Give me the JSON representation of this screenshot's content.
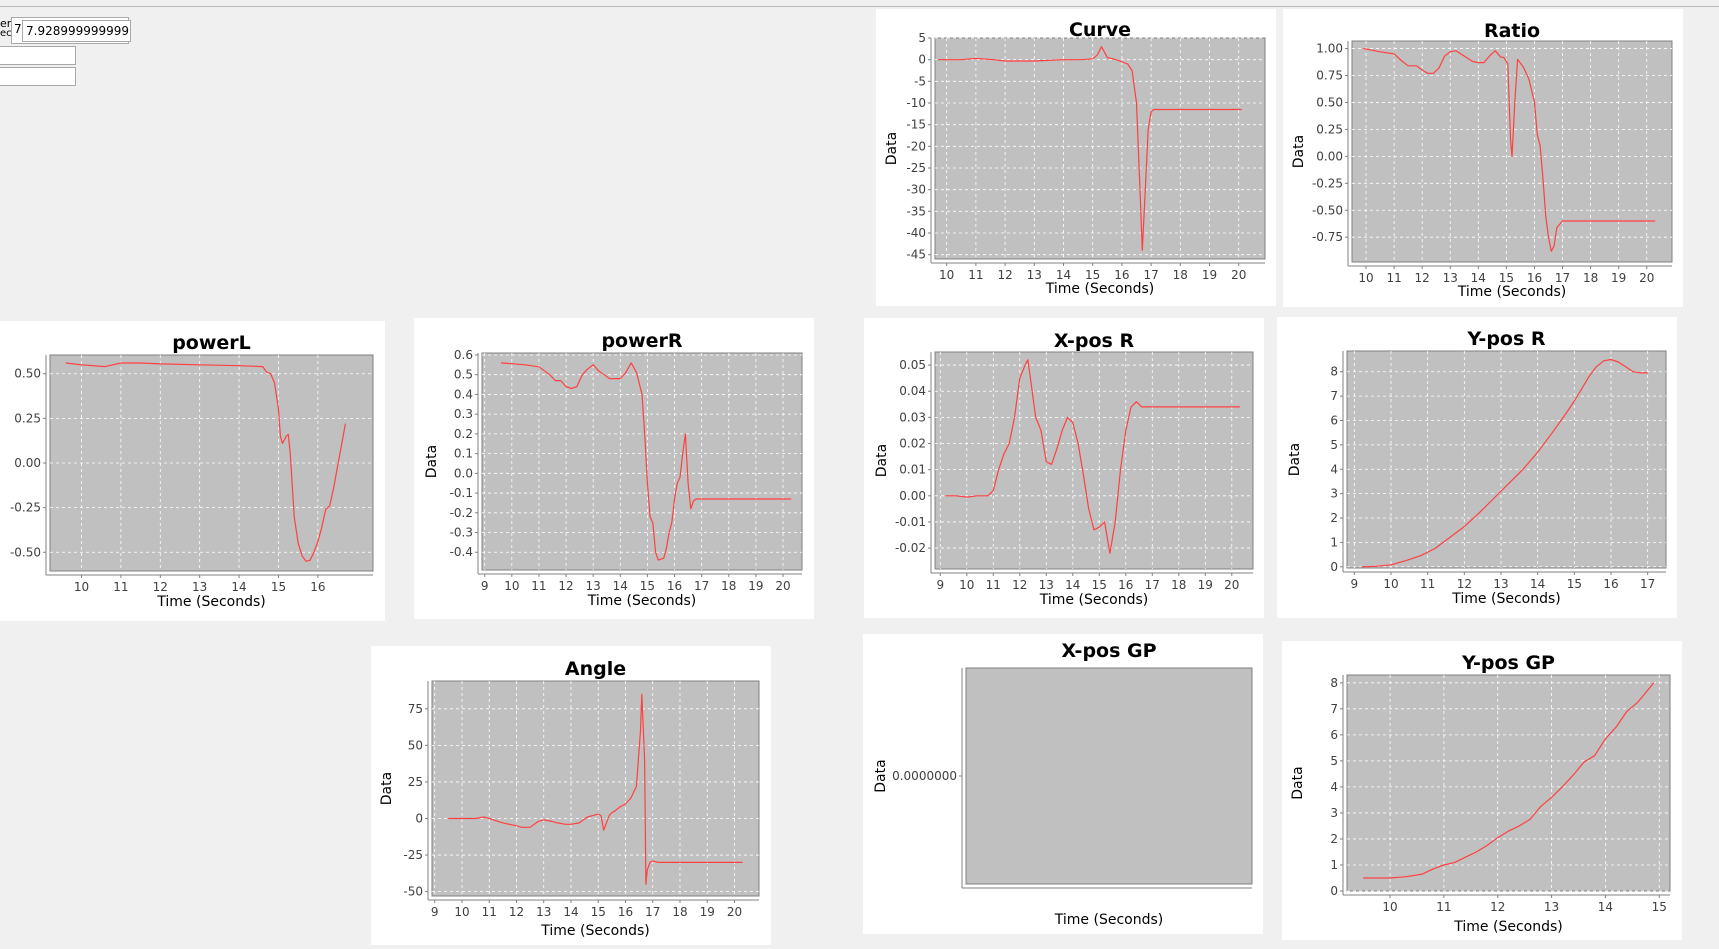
{
  "controls": {
    "label_top": "er",
    "label_bottom": "ecto",
    "field_small": "7.",
    "field_value": "7.92899999999999",
    "field_2": "",
    "field_3": ""
  },
  "series_color": "#ff4040",
  "plot_bg": "#c0c0c0",
  "chart_data": [
    {
      "id": "curve",
      "type": "line",
      "title": "Curve",
      "xlabel": "Time (Seconds)",
      "ylabel": "Data",
      "xlim": [
        9.6,
        20.9
      ],
      "ylim": [
        -46,
        5
      ],
      "xticks": [
        10,
        11,
        12,
        13,
        14,
        15,
        16,
        17,
        18,
        19,
        20
      ],
      "yticks": [
        5,
        0,
        -5,
        -10,
        -15,
        -20,
        -25,
        -30,
        -35,
        -40,
        -45
      ],
      "ydec": 0,
      "grid": true,
      "x": [
        9.7,
        10.5,
        11.0,
        11.6,
        12.0,
        13.0,
        14.0,
        14.6,
        15.0,
        15.15,
        15.3,
        15.5,
        15.8,
        16.0,
        16.2,
        16.35,
        16.5,
        16.62,
        16.7,
        16.8,
        16.9,
        17.0,
        17.1,
        17.5,
        18.0,
        19.0,
        20.1
      ],
      "y": [
        0,
        0,
        0.3,
        0,
        -0.3,
        -0.3,
        0,
        0,
        0.2,
        1.0,
        3.0,
        0.5,
        0,
        -0.5,
        -1.0,
        -2.5,
        -10,
        -30,
        -44,
        -30,
        -16,
        -12,
        -11.5,
        -11.5,
        -11.5,
        -11.5,
        -11.5
      ]
    },
    {
      "id": "ratio",
      "type": "line",
      "title": "Ratio",
      "xlabel": "Time (Seconds)",
      "ylabel": "Data",
      "xlim": [
        9.5,
        20.9
      ],
      "ylim": [
        -0.98,
        1.07
      ],
      "xticks": [
        10,
        11,
        12,
        13,
        14,
        15,
        16,
        17,
        18,
        19,
        20
      ],
      "yticks": [
        1.0,
        0.75,
        0.5,
        0.25,
        0.0,
        -0.25,
        -0.5,
        -0.75
      ],
      "ydec": 2,
      "grid": true,
      "x": [
        9.9,
        10.5,
        11.0,
        11.3,
        11.5,
        11.8,
        12.0,
        12.2,
        12.4,
        12.6,
        12.8,
        13.0,
        13.2,
        13.5,
        13.8,
        14.0,
        14.2,
        14.4,
        14.6,
        14.8,
        14.9,
        15.0,
        15.05,
        15.1,
        15.15,
        15.2,
        15.3,
        15.4,
        15.6,
        15.8,
        16.0,
        16.1,
        16.2,
        16.3,
        16.4,
        16.5,
        16.6,
        16.7,
        16.8,
        17.0,
        18.0,
        19.0,
        20.3
      ],
      "y": [
        1.0,
        0.97,
        0.95,
        0.88,
        0.84,
        0.84,
        0.8,
        0.77,
        0.77,
        0.82,
        0.93,
        0.97,
        0.98,
        0.93,
        0.88,
        0.87,
        0.87,
        0.93,
        0.98,
        0.92,
        0.92,
        0.88,
        0.86,
        0.5,
        0.15,
        0.0,
        0.5,
        0.9,
        0.83,
        0.72,
        0.5,
        0.2,
        0.1,
        -0.2,
        -0.55,
        -0.75,
        -0.88,
        -0.83,
        -0.66,
        -0.6,
        -0.6,
        -0.6,
        -0.6
      ]
    },
    {
      "id": "powerL",
      "type": "line",
      "title": "powerL",
      "xlabel": "Time (Seconds)",
      "ylabel": "Data",
      "xlim": [
        9.2,
        17.4
      ],
      "ylim": [
        -0.605,
        0.605
      ],
      "xticks": [
        10,
        11,
        12,
        13,
        14,
        15,
        16
      ],
      "yticks": [
        0.5,
        0.25,
        0.0,
        -0.25,
        -0.5
      ],
      "ydec": 2,
      "grid": true,
      "x": [
        9.6,
        10.0,
        10.6,
        11.0,
        11.5,
        12.0,
        13.0,
        14.0,
        14.6,
        14.7,
        14.8,
        14.9,
        15.0,
        15.05,
        15.1,
        15.15,
        15.2,
        15.25,
        15.3,
        15.4,
        15.5,
        15.6,
        15.7,
        15.8,
        15.9,
        16.0,
        16.1,
        16.2,
        16.3,
        16.4,
        16.5,
        16.6,
        16.7
      ],
      "y": [
        0.56,
        0.55,
        0.54,
        0.56,
        0.56,
        0.555,
        0.55,
        0.545,
        0.54,
        0.51,
        0.5,
        0.45,
        0.3,
        0.15,
        0.11,
        0.13,
        0.15,
        0.16,
        0.05,
        -0.3,
        -0.45,
        -0.52,
        -0.55,
        -0.545,
        -0.5,
        -0.44,
        -0.36,
        -0.26,
        -0.24,
        -0.14,
        -0.02,
        0.1,
        0.22
      ]
    },
    {
      "id": "powerR",
      "type": "line",
      "title": "powerR",
      "xlabel": "Time (Seconds)",
      "ylabel": "Data",
      "xlim": [
        8.9,
        20.7
      ],
      "ylim": [
        -0.49,
        0.61
      ],
      "xticks": [
        9,
        10,
        11,
        12,
        13,
        14,
        15,
        16,
        17,
        18,
        19,
        20
      ],
      "yticks": [
        0.6,
        0.5,
        0.4,
        0.3,
        0.2,
        0.1,
        0.0,
        -0.1,
        -0.2,
        -0.3,
        -0.4
      ],
      "ydec": 1,
      "grid": true,
      "x": [
        9.6,
        10.5,
        11.0,
        11.4,
        11.6,
        11.8,
        12.0,
        12.2,
        12.4,
        12.6,
        12.8,
        13.0,
        13.2,
        13.4,
        13.6,
        13.8,
        14.0,
        14.2,
        14.4,
        14.6,
        14.8,
        14.9,
        15.0,
        15.1,
        15.2,
        15.3,
        15.4,
        15.6,
        15.7,
        15.8,
        15.9,
        16.0,
        16.1,
        16.2,
        16.3,
        16.4,
        16.5,
        16.6,
        16.7,
        16.8,
        17.0,
        18.0,
        19.0,
        20.3
      ],
      "y": [
        0.56,
        0.55,
        0.54,
        0.5,
        0.47,
        0.47,
        0.44,
        0.43,
        0.44,
        0.5,
        0.53,
        0.55,
        0.52,
        0.5,
        0.48,
        0.48,
        0.48,
        0.51,
        0.56,
        0.51,
        0.4,
        0.2,
        -0.05,
        -0.22,
        -0.25,
        -0.4,
        -0.44,
        -0.43,
        -0.38,
        -0.3,
        -0.25,
        -0.13,
        -0.05,
        -0.02,
        0.1,
        0.2,
        -0.05,
        -0.18,
        -0.14,
        -0.13,
        -0.13,
        -0.13,
        -0.13,
        -0.13
      ]
    },
    {
      "id": "xposR",
      "type": "line",
      "title": "X-pos R",
      "xlabel": "Time (Seconds)",
      "ylabel": "Data",
      "xlim": [
        8.8,
        20.8
      ],
      "ylim": [
        -0.028,
        0.055
      ],
      "xticks": [
        9,
        10,
        11,
        12,
        13,
        14,
        15,
        16,
        17,
        18,
        19,
        20
      ],
      "yticks": [
        0.05,
        0.04,
        0.03,
        0.02,
        0.01,
        0.0,
        -0.01,
        -0.02
      ],
      "ydec": 2,
      "grid": true,
      "x": [
        9.2,
        9.6,
        10.0,
        10.4,
        10.8,
        11.0,
        11.2,
        11.4,
        11.6,
        11.8,
        12.0,
        12.2,
        12.3,
        12.4,
        12.6,
        12.8,
        13.0,
        13.2,
        13.4,
        13.6,
        13.8,
        14.0,
        14.2,
        14.4,
        14.6,
        14.8,
        15.0,
        15.2,
        15.4,
        15.6,
        15.8,
        16.0,
        16.2,
        16.4,
        16.6,
        16.8,
        17.0,
        18.0,
        19.0,
        20.3
      ],
      "y": [
        0.0,
        0.0,
        -0.0005,
        0.0,
        0.0,
        0.002,
        0.01,
        0.016,
        0.02,
        0.03,
        0.045,
        0.05,
        0.052,
        0.045,
        0.03,
        0.025,
        0.013,
        0.012,
        0.018,
        0.025,
        0.03,
        0.028,
        0.02,
        0.008,
        -0.005,
        -0.013,
        -0.012,
        -0.01,
        -0.022,
        -0.01,
        0.01,
        0.025,
        0.034,
        0.036,
        0.034,
        0.034,
        0.034,
        0.034,
        0.034,
        0.034
      ]
    },
    {
      "id": "yposR",
      "type": "line",
      "title": "Y-pos R",
      "xlabel": "Time (Seconds)",
      "ylabel": "Data",
      "xlim": [
        8.8,
        17.5
      ],
      "ylim": [
        -0.05,
        8.85
      ],
      "xticks": [
        9,
        10,
        11,
        12,
        13,
        14,
        15,
        16,
        17
      ],
      "yticks": [
        8,
        7,
        6,
        5,
        4,
        3,
        2,
        1,
        0
      ],
      "ydec": 0,
      "grid": true,
      "x": [
        9.2,
        9.6,
        10.0,
        10.4,
        10.8,
        11.2,
        11.6,
        12.0,
        12.4,
        12.8,
        13.2,
        13.6,
        14.0,
        14.4,
        14.8,
        15.0,
        15.2,
        15.4,
        15.6,
        15.8,
        16.0,
        16.2,
        16.4,
        16.6,
        16.8,
        17.0
      ],
      "y": [
        0.0,
        0.02,
        0.08,
        0.25,
        0.45,
        0.75,
        1.2,
        1.65,
        2.2,
        2.8,
        3.4,
        4.0,
        4.7,
        5.5,
        6.35,
        6.8,
        7.3,
        7.8,
        8.2,
        8.45,
        8.5,
        8.4,
        8.2,
        8.0,
        7.95,
        7.95
      ]
    },
    {
      "id": "angle",
      "type": "line",
      "title": "Angle",
      "xlabel": "Time (Seconds)",
      "ylabel": "Data",
      "xlim": [
        8.9,
        20.9
      ],
      "ylim": [
        -53,
        94
      ],
      "xticks": [
        9,
        10,
        11,
        12,
        13,
        14,
        15,
        16,
        17,
        18,
        19,
        20
      ],
      "yticks": [
        75,
        50,
        25,
        0,
        -25,
        -50
      ],
      "ydec": 0,
      "grid": true,
      "x": [
        9.5,
        10.0,
        10.5,
        10.8,
        11.0,
        11.5,
        12.0,
        12.2,
        12.5,
        12.8,
        13.0,
        13.3,
        13.5,
        13.8,
        14.0,
        14.3,
        14.6,
        14.8,
        15.0,
        15.1,
        15.2,
        15.3,
        15.4,
        15.5,
        15.6,
        15.8,
        16.0,
        16.2,
        16.4,
        16.55,
        16.6,
        16.7,
        16.75,
        16.8,
        16.9,
        17.0,
        17.2,
        17.5,
        18.0,
        19.0,
        20.3
      ],
      "y": [
        0,
        0,
        0,
        1,
        0,
        -3,
        -5,
        -6,
        -6,
        -2,
        -1,
        -2,
        -3,
        -4,
        -4,
        -3,
        1,
        2,
        3,
        2,
        -8,
        -3,
        2,
        4,
        5,
        8,
        10,
        14,
        22,
        60,
        85,
        40,
        -45,
        -35,
        -30,
        -29,
        -30,
        -30,
        -30,
        -30,
        -30
      ]
    },
    {
      "id": "xposGP",
      "type": "line",
      "title": "X-pos GP",
      "xlabel": "Time (Seconds)",
      "ylabel": "Data",
      "xlim": [
        0,
        1
      ],
      "ylim": [
        -1,
        1
      ],
      "xticks": [],
      "yticks": [
        0
      ],
      "ytick_labels": [
        "0.0000000"
      ],
      "ydec": 7,
      "grid": false,
      "x": [],
      "y": []
    },
    {
      "id": "yposGP",
      "type": "line",
      "title": "Y-pos GP",
      "xlabel": "Time (Seconds)",
      "ylabel": "Data",
      "xlim": [
        9.2,
        15.2
      ],
      "ylim": [
        0,
        8.3
      ],
      "xticks": [
        10,
        11,
        12,
        13,
        14,
        15
      ],
      "yticks": [
        8,
        7,
        6,
        5,
        4,
        3,
        2,
        1,
        0
      ],
      "ydec": 0,
      "grid": true,
      "x": [
        9.5,
        10.0,
        10.3,
        10.6,
        10.8,
        11.0,
        11.2,
        11.4,
        11.6,
        11.8,
        12.0,
        12.2,
        12.4,
        12.6,
        12.8,
        13.0,
        13.2,
        13.4,
        13.6,
        13.8,
        14.0,
        14.2,
        14.4,
        14.6,
        14.8,
        14.9
      ],
      "y": [
        0.5,
        0.5,
        0.55,
        0.65,
        0.85,
        1.0,
        1.1,
        1.3,
        1.5,
        1.75,
        2.05,
        2.3,
        2.5,
        2.75,
        3.25,
        3.6,
        4.0,
        4.45,
        4.95,
        5.2,
        5.85,
        6.3,
        6.9,
        7.25,
        7.75,
        8.0
      ]
    }
  ]
}
